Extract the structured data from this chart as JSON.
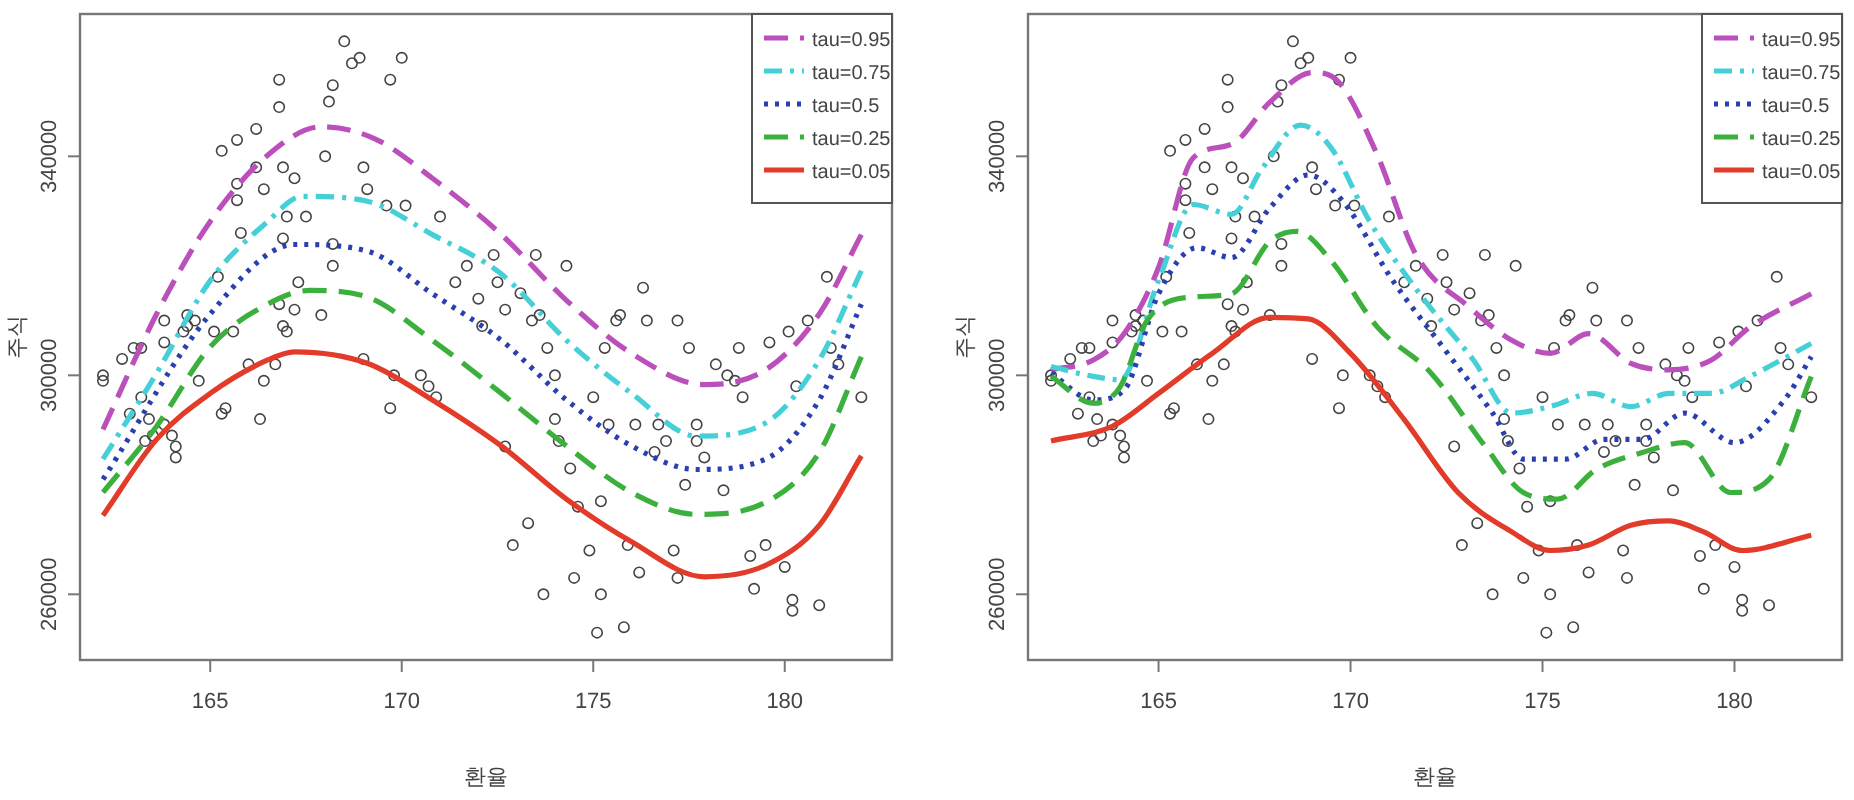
{
  "chart_data": [
    {
      "type": "line",
      "xlabel": "환율",
      "ylabel": "주식",
      "xlim": [
        161.6,
        182.8
      ],
      "ylim": [
        248000,
        366000
      ],
      "xticks": [
        165,
        170,
        175,
        180
      ],
      "yticks": [
        260000,
        300000,
        340000
      ],
      "grid": false,
      "legend": "top right",
      "series": [
        {
          "type": "scatter",
          "color": "#444444",
          "marker": "circle",
          "x": [
            162.2,
            162.2,
            162.7,
            163.0,
            163.2,
            162.9,
            163.2,
            163.4,
            163.5,
            163.3,
            163.8,
            164.1,
            164.1,
            164.0,
            163.8,
            163.8,
            164.3,
            164.4,
            164.4,
            164.6,
            164.7,
            165.3,
            165.4,
            165.1,
            165.2,
            165.3,
            165.6,
            165.7,
            165.7,
            165.7,
            165.8,
            166.0,
            166.2,
            166.2,
            166.4,
            166.3,
            166.4,
            166.7,
            166.8,
            166.8,
            166.9,
            166.9,
            166.8,
            166.9,
            167.0,
            167.0,
            167.2,
            167.2,
            167.3,
            167.5,
            167.9,
            168.0,
            168.1,
            168.2,
            168.2,
            168.2,
            168.5,
            168.7,
            168.9,
            169.0,
            169.0,
            169.1,
            169.6,
            169.7,
            169.8,
            170.0,
            169.7,
            170.1,
            170.5,
            170.7,
            170.9,
            171.0,
            171.4,
            171.7,
            172.0,
            172.1,
            172.4,
            172.5,
            172.7,
            172.7,
            172.9,
            173.1,
            173.3,
            173.4,
            173.5,
            173.6,
            173.7,
            173.8,
            174.0,
            174.0,
            174.1,
            174.3,
            174.4,
            174.5,
            174.6,
            174.9,
            175.0,
            175.2,
            175.2,
            175.1,
            175.3,
            175.4,
            175.6,
            175.7,
            175.8,
            175.9,
            176.1,
            176.2,
            176.3,
            176.4,
            176.6,
            176.7,
            176.9,
            177.1,
            177.2,
            177.2,
            177.4,
            177.5,
            177.7,
            177.7,
            177.9,
            178.2,
            178.4,
            178.5,
            178.7,
            178.8,
            178.9,
            179.1,
            179.2,
            179.5,
            179.6,
            180.0,
            180.2,
            180.2,
            180.3,
            180.6,
            180.9,
            181.1,
            181.2,
            181.4,
            182.0,
            180.1
          ],
          "values": [
            300000,
            299000,
            303000,
            305000,
            305000,
            293000,
            296000,
            292000,
            289000,
            288000,
            291000,
            287000,
            285000,
            289000,
            306000,
            310000,
            308000,
            309000,
            311000,
            310000,
            299000,
            293000,
            294000,
            308000,
            318000,
            341000,
            308000,
            343000,
            335000,
            332000,
            326000,
            302000,
            345000,
            338000,
            299000,
            292000,
            334000,
            302000,
            354000,
            349000,
            338000,
            325000,
            313000,
            309000,
            308000,
            329000,
            336000,
            312000,
            317000,
            329000,
            311000,
            340000,
            350000,
            353000,
            324000,
            320000,
            361000,
            357000,
            358000,
            338000,
            303000,
            334000,
            331000,
            294000,
            300000,
            358000,
            354000,
            331000,
            300000,
            298000,
            296000,
            329000,
            317000,
            320000,
            314000,
            309000,
            322000,
            317000,
            312000,
            287000,
            269000,
            315000,
            273000,
            310000,
            322000,
            311000,
            260000,
            305000,
            300000,
            292000,
            288000,
            320000,
            283000,
            263000,
            276000,
            268000,
            296000,
            277000,
            260000,
            253000,
            305000,
            291000,
            310000,
            311000,
            254000,
            269000,
            291000,
            264000,
            316000,
            310000,
            286000,
            291000,
            288000,
            268000,
            263000,
            310000,
            280000,
            305000,
            288000,
            291000,
            285000,
            302000,
            279000,
            300000,
            299000,
            305000,
            296000,
            267000,
            261000,
            269000,
            306000,
            265000,
            259000,
            257000,
            298000,
            310000,
            258000,
            318000,
            305000,
            302000,
            296000,
            308000
          ]
        },
        {
          "name": "tau=0.95",
          "color": "#bb4fbb",
          "line_style": "dashed",
          "x": [
            162.2,
            163.6,
            165.0,
            166.5,
            167.9,
            169.3,
            170.8,
            172.6,
            174.3,
            176.0,
            177.9,
            179.5,
            180.9,
            182.0
          ],
          "values": [
            290100,
            311200,
            328100,
            340200,
            345400,
            343200,
            336000,
            325700,
            313700,
            304000,
            298300,
            301000,
            311200,
            325700
          ]
        },
        {
          "name": "tau=0.75",
          "color": "#45d0d8",
          "line_style": "dashdot",
          "x": [
            162.2,
            163.6,
            165.0,
            166.5,
            167.4,
            169.1,
            170.8,
            172.6,
            174.3,
            176.0,
            177.7,
            179.5,
            180.9,
            182.0
          ],
          "values": [
            284700,
            300400,
            317300,
            328100,
            332700,
            331800,
            325700,
            318500,
            306400,
            296700,
            288900,
            291300,
            302800,
            319100
          ]
        },
        {
          "name": "tau=0.5",
          "color": "#2a3fb0",
          "line_style": "dotted",
          "x": [
            162.2,
            165.0,
            167.2,
            169.1,
            170.8,
            172.6,
            174.3,
            176.0,
            177.7,
            179.5,
            180.9,
            182.0
          ],
          "values": [
            281000,
            311200,
            323900,
            322700,
            314900,
            306400,
            295500,
            287100,
            282800,
            284700,
            295500,
            313000
          ]
        },
        {
          "name": "tau=0.25",
          "color": "#3cb03c",
          "line_style": "dashed",
          "x": [
            162.2,
            163.6,
            165.0,
            166.5,
            167.6,
            169.1,
            170.8,
            172.6,
            174.3,
            176.0,
            177.7,
            179.5,
            180.9,
            182.0
          ],
          "values": [
            278600,
            290700,
            305200,
            313000,
            315500,
            314300,
            306400,
            296700,
            287100,
            278600,
            274600,
            276800,
            285900,
            303400
          ]
        },
        {
          "name": "tau=0.05",
          "color": "#e23b2a",
          "line_style": "solid",
          "x": [
            162.2,
            163.6,
            165.0,
            166.5,
            167.2,
            169.1,
            170.8,
            172.6,
            174.3,
            176.0,
            177.9,
            179.5,
            180.9,
            182.0
          ],
          "values": [
            274400,
            288300,
            296700,
            302800,
            304300,
            302200,
            295500,
            287100,
            277400,
            269600,
            263200,
            265300,
            272600,
            285300
          ]
        }
      ]
    },
    {
      "type": "line",
      "xlabel": "환율",
      "ylabel": "주식",
      "xlim": [
        161.6,
        182.8
      ],
      "ylim": [
        248000,
        366000
      ],
      "xticks": [
        165,
        170,
        175,
        180
      ],
      "yticks": [
        260000,
        300000,
        340000
      ],
      "grid": false,
      "legend": "top right",
      "series": [
        {
          "type": "scatter",
          "color": "#444444",
          "marker": "circle",
          "x": [
            162.2,
            162.2,
            162.7,
            163.0,
            163.2,
            162.9,
            163.2,
            163.4,
            163.5,
            163.3,
            163.8,
            164.1,
            164.1,
            164.0,
            163.8,
            163.8,
            164.3,
            164.4,
            164.4,
            164.6,
            164.7,
            165.3,
            165.4,
            165.1,
            165.2,
            165.3,
            165.6,
            165.7,
            165.7,
            165.7,
            165.8,
            166.0,
            166.2,
            166.2,
            166.4,
            166.3,
            166.4,
            166.7,
            166.8,
            166.8,
            166.9,
            166.9,
            166.8,
            166.9,
            167.0,
            167.0,
            167.2,
            167.2,
            167.3,
            167.5,
            167.9,
            168.0,
            168.1,
            168.2,
            168.2,
            168.2,
            168.5,
            168.7,
            168.9,
            169.0,
            169.0,
            169.1,
            169.6,
            169.7,
            169.8,
            170.0,
            169.7,
            170.1,
            170.5,
            170.7,
            170.9,
            171.0,
            171.4,
            171.7,
            172.0,
            172.1,
            172.4,
            172.5,
            172.7,
            172.7,
            172.9,
            173.1,
            173.3,
            173.4,
            173.5,
            173.6,
            173.7,
            173.8,
            174.0,
            174.0,
            174.1,
            174.3,
            174.4,
            174.5,
            174.6,
            174.9,
            175.0,
            175.2,
            175.2,
            175.1,
            175.3,
            175.4,
            175.6,
            175.7,
            175.8,
            175.9,
            176.1,
            176.2,
            176.3,
            176.4,
            176.6,
            176.7,
            176.9,
            177.1,
            177.2,
            177.2,
            177.4,
            177.5,
            177.7,
            177.7,
            177.9,
            178.2,
            178.4,
            178.5,
            178.7,
            178.8,
            178.9,
            179.1,
            179.2,
            179.5,
            179.6,
            180.0,
            180.2,
            180.2,
            180.3,
            180.6,
            180.9,
            181.1,
            181.2,
            181.4,
            182.0,
            180.1
          ],
          "values": [
            300000,
            299000,
            303000,
            305000,
            305000,
            293000,
            296000,
            292000,
            289000,
            288000,
            291000,
            287000,
            285000,
            289000,
            306000,
            310000,
            308000,
            309000,
            311000,
            310000,
            299000,
            293000,
            294000,
            308000,
            318000,
            341000,
            308000,
            343000,
            335000,
            332000,
            326000,
            302000,
            345000,
            338000,
            299000,
            292000,
            334000,
            302000,
            354000,
            349000,
            338000,
            325000,
            313000,
            309000,
            308000,
            329000,
            336000,
            312000,
            317000,
            329000,
            311000,
            340000,
            350000,
            353000,
            324000,
            320000,
            361000,
            357000,
            358000,
            338000,
            303000,
            334000,
            331000,
            294000,
            300000,
            358000,
            354000,
            331000,
            300000,
            298000,
            296000,
            329000,
            317000,
            320000,
            314000,
            309000,
            322000,
            317000,
            312000,
            287000,
            269000,
            315000,
            273000,
            310000,
            322000,
            311000,
            260000,
            305000,
            300000,
            292000,
            288000,
            320000,
            283000,
            263000,
            276000,
            268000,
            296000,
            277000,
            260000,
            253000,
            305000,
            291000,
            310000,
            311000,
            254000,
            269000,
            291000,
            264000,
            316000,
            310000,
            286000,
            291000,
            288000,
            268000,
            263000,
            310000,
            280000,
            305000,
            288000,
            291000,
            285000,
            302000,
            279000,
            300000,
            299000,
            305000,
            296000,
            267000,
            261000,
            269000,
            306000,
            265000,
            259000,
            257000,
            298000,
            310000,
            258000,
            318000,
            305000,
            302000,
            296000,
            308000
          ]
        },
        {
          "name": "tau=0.95",
          "color": "#bb4fbb",
          "line_style": "dashed",
          "x": [
            162.2,
            163.3,
            164.1,
            165.0,
            165.9,
            166.9,
            167.9,
            169.0,
            169.7,
            170.7,
            171.7,
            173.1,
            174.2,
            175.2,
            176.2,
            177.3,
            178.3,
            179.4,
            180.4,
            182.0
          ],
          "values": [
            301000,
            302800,
            307600,
            319700,
            339700,
            342200,
            349900,
            355300,
            353500,
            340200,
            322100,
            312400,
            306400,
            304000,
            307600,
            302200,
            301000,
            302800,
            308800,
            314900
          ]
        },
        {
          "name": "tau=0.75",
          "color": "#45d0d8",
          "line_style": "dashdot",
          "x": [
            162.2,
            163.3,
            164.0,
            165.0,
            165.9,
            166.9,
            167.7,
            168.7,
            169.5,
            170.5,
            171.8,
            173.2,
            174.2,
            175.2,
            176.3,
            177.3,
            178.3,
            179.4,
            180.4,
            182.0
          ],
          "values": [
            301600,
            299800,
            299200,
            317300,
            331200,
            329400,
            337800,
            345700,
            341500,
            328100,
            314900,
            302800,
            293100,
            294300,
            296700,
            294300,
            296700,
            296700,
            299800,
            305800
          ]
        },
        {
          "name": "tau=0.5",
          "color": "#2a3fb0",
          "line_style": "dotted",
          "x": [
            162.2,
            163.3,
            164.1,
            165.0,
            166.0,
            166.9,
            167.9,
            168.9,
            169.8,
            171.1,
            172.4,
            173.7,
            174.5,
            175.6,
            176.6,
            177.6,
            178.7,
            180.0,
            181.3,
            182.0
          ],
          "values": [
            300400,
            295500,
            297300,
            314900,
            323300,
            321500,
            330600,
            336600,
            331800,
            317300,
            305200,
            293100,
            284700,
            284700,
            288300,
            288300,
            293100,
            287700,
            295500,
            303400
          ]
        },
        {
          "name": "tau=0.25",
          "color": "#3cb03c",
          "line_style": "dashed",
          "x": [
            162.2,
            163.3,
            164.0,
            164.7,
            165.9,
            166.9,
            167.9,
            168.6,
            169.5,
            170.7,
            172.1,
            173.5,
            174.5,
            175.4,
            176.4,
            177.6,
            178.7,
            179.9,
            180.9,
            182.0
          ],
          "values": [
            299800,
            294900,
            297900,
            310000,
            314300,
            314900,
            324500,
            326300,
            320900,
            308800,
            300400,
            287100,
            278600,
            277400,
            282800,
            285900,
            287700,
            278600,
            281000,
            299800
          ]
        },
        {
          "name": "tau=0.05",
          "color": "#e23b2a",
          "line_style": "solid",
          "x": [
            162.2,
            163.8,
            165.0,
            166.4,
            167.9,
            168.9,
            170.0,
            171.4,
            172.8,
            174.2,
            175.2,
            176.2,
            177.3,
            178.3,
            179.2,
            180.2,
            182.0
          ],
          "values": [
            288000,
            290700,
            296700,
            304000,
            310600,
            310300,
            304000,
            291900,
            278600,
            271400,
            268000,
            269000,
            272600,
            273400,
            271400,
            268000,
            270800
          ]
        }
      ]
    }
  ]
}
